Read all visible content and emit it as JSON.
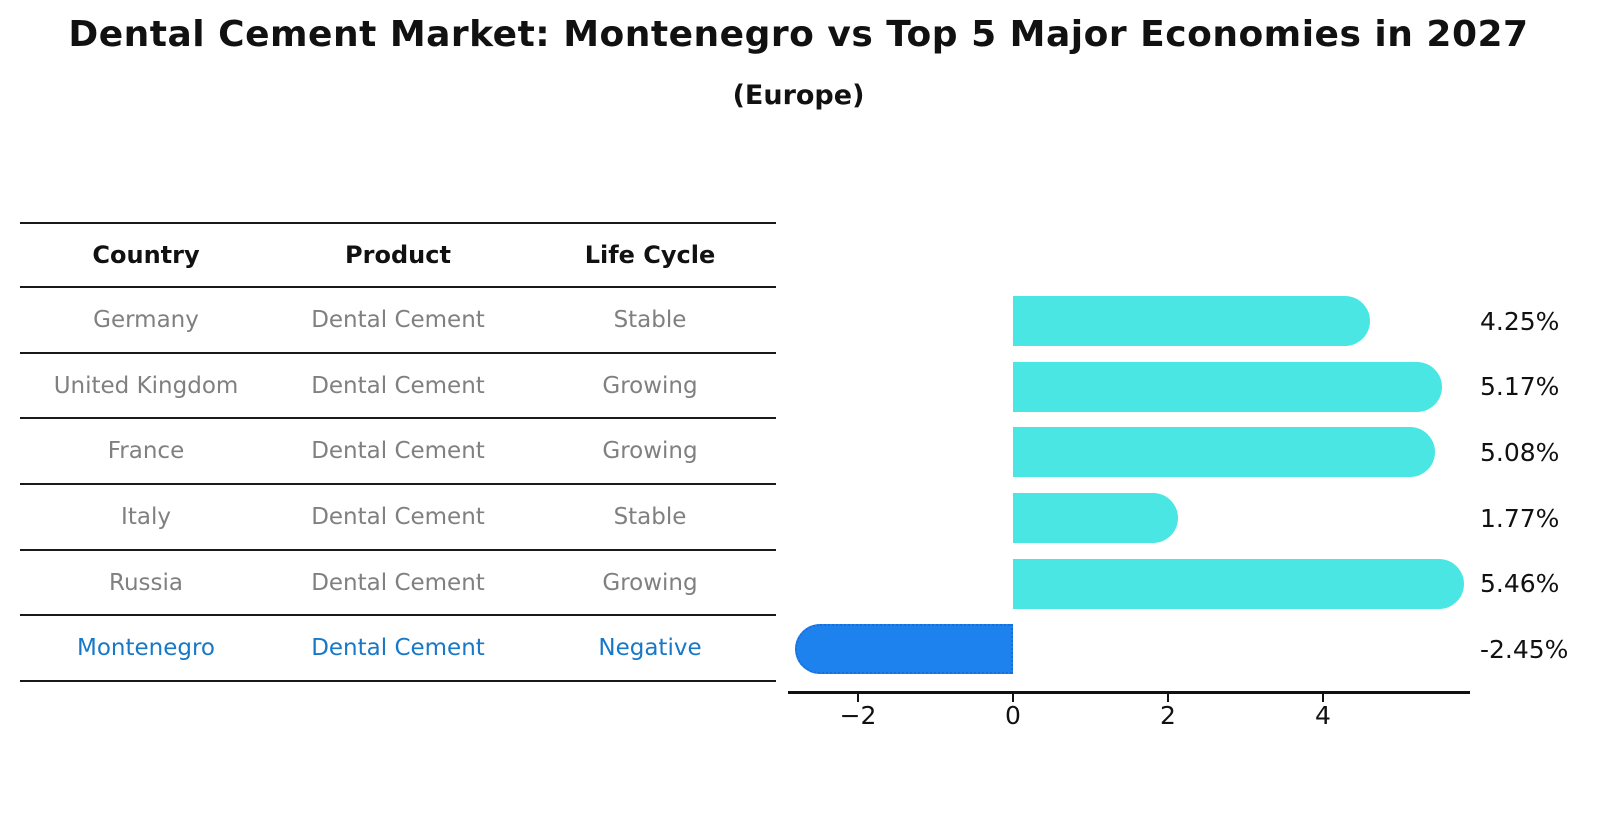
{
  "header": {
    "title": "Dental Cement Market: Montenegro vs Top 5 Major Economies in 2027",
    "subtitle": "(Europe)"
  },
  "table": {
    "columns": [
      "Country",
      "Product",
      "Life Cycle"
    ],
    "rows": [
      {
        "country": "Germany",
        "product": "Dental Cement",
        "life_cycle": "Stable",
        "highlight": false
      },
      {
        "country": "United Kingdom",
        "product": "Dental Cement",
        "life_cycle": "Growing",
        "highlight": false
      },
      {
        "country": "France",
        "product": "Dental Cement",
        "life_cycle": "Growing",
        "highlight": false
      },
      {
        "country": "Italy",
        "product": "Dental Cement",
        "life_cycle": "Stable",
        "highlight": false
      },
      {
        "country": "Russia",
        "product": "Dental Cement",
        "life_cycle": "Growing",
        "highlight": false
      },
      {
        "country": "Montenegro",
        "product": "Dental Cement",
        "life_cycle": "Negative",
        "highlight": true
      }
    ]
  },
  "chart_data": {
    "type": "bar",
    "orientation": "horizontal",
    "title": "Dental Cement Market: Montenegro vs Top 5 Major Economies in 2027",
    "subtitle": "(Europe)",
    "categories": [
      "Germany",
      "United Kingdom",
      "France",
      "Italy",
      "Russia",
      "Montenegro"
    ],
    "values": [
      4.25,
      5.17,
      5.08,
      1.77,
      5.46,
      -2.45
    ],
    "value_labels": [
      "4.25%",
      "5.17%",
      "5.08%",
      "1.77%",
      "5.46%",
      "-2.45%"
    ],
    "highlight_category": "Montenegro",
    "x_ticks": [
      -2,
      0,
      2,
      4
    ],
    "x_tick_labels": [
      "−2",
      "0",
      "2",
      "4"
    ],
    "xlim": [
      -2.9,
      5.9
    ],
    "grid": false,
    "legend": false,
    "colors": {
      "bar_positive": "#4AE6E3",
      "bar_highlight": "#1E82EE",
      "bar_highlight_border": "#1B6ED6",
      "highlight_text": "#1878C8",
      "row_text": "#808080",
      "header_text": "#111111"
    }
  }
}
